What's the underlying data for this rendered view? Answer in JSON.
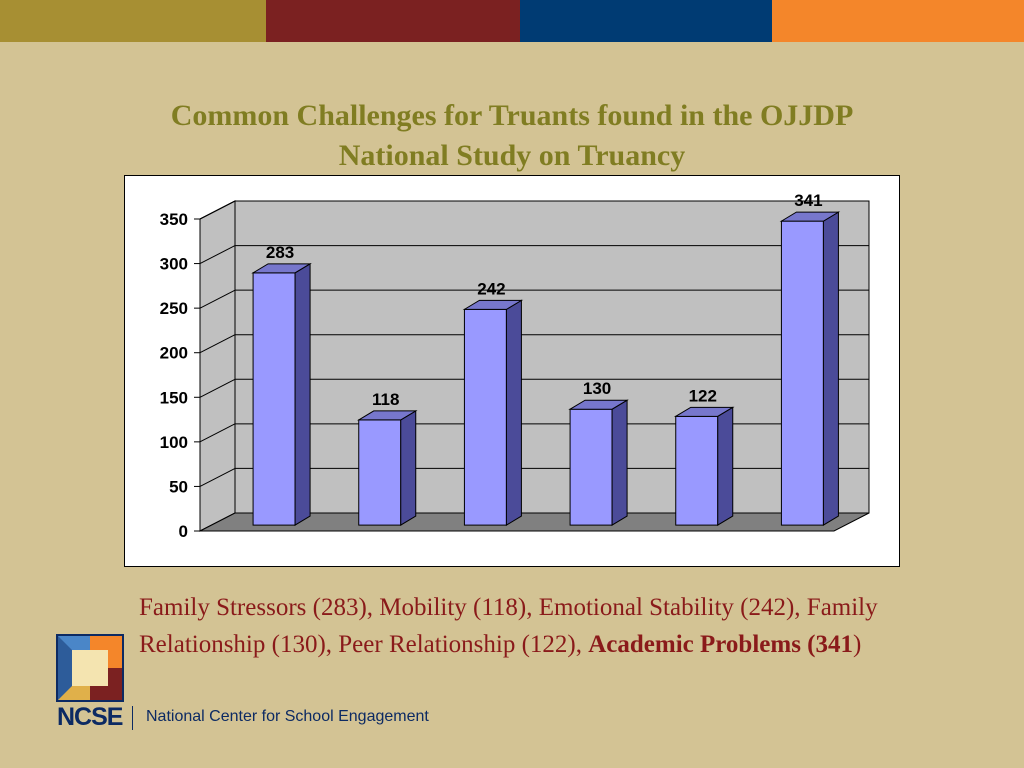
{
  "slide": {
    "title_line1": "Common Challenges for Truants found in the OJJDP",
    "title_line2": "National Study on Truancy",
    "caption_plain": "Family Stressors (283), Mobility (118), Emotional Stability (242), Family Relationship (130), Peer Relationship (122), ",
    "caption_bold": "Academic Problems (341",
    "caption_end": ")",
    "top_band_colors": [
      "#A78F33",
      "#7B2121",
      "#003B73",
      "#F4862A"
    ],
    "colors": {
      "background": "#D3C394",
      "title": "#807D22",
      "caption": "#8A1A1A",
      "bar_face": "#9999FF",
      "bar_side": "#4B4B99",
      "bar_top": "#7777CC",
      "wall": "#C0C0C0",
      "floor": "#808080"
    }
  },
  "logo": {
    "abbr": "NCSE",
    "name": "National Center for School Engagement",
    "icon": "ncse-quilt-logo-icon"
  },
  "chart_data": {
    "type": "bar",
    "title": "",
    "xlabel": "",
    "ylabel": "",
    "categories": [
      "Family Stressors",
      "Mobility",
      "Emotional Stability",
      "Family Relationship",
      "Peer Relationship",
      "Academic Problems"
    ],
    "values": [
      283,
      118,
      242,
      130,
      122,
      341
    ],
    "data_labels": [
      "283",
      "118",
      "242",
      "130",
      "122",
      "341"
    ],
    "ylim": [
      0,
      350
    ],
    "yticks": [
      0,
      50,
      100,
      150,
      200,
      250,
      300,
      350
    ],
    "grid": true,
    "legend": "none",
    "style": "3d-column"
  }
}
